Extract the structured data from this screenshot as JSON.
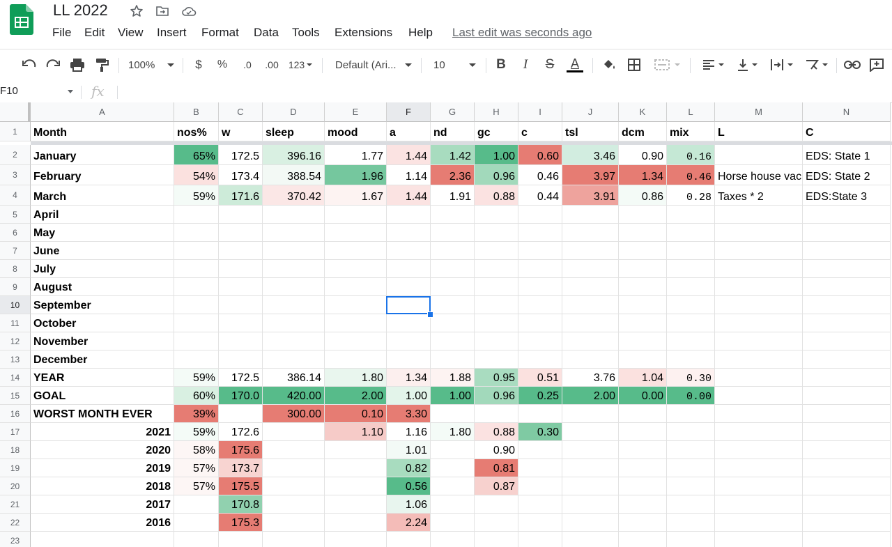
{
  "app": {
    "title": "LL 2022",
    "last_edit": "Last edit was seconds ago"
  },
  "menu": [
    "File",
    "Edit",
    "View",
    "Insert",
    "Format",
    "Data",
    "Tools",
    "Extensions",
    "Help"
  ],
  "toolbar": {
    "zoom": "100%",
    "currency": "$",
    "percent": "%",
    "dec_less": ".0",
    "dec_more": ".00",
    "more_formats": "123",
    "font": "Default (Ari...",
    "font_size": "10"
  },
  "formula_bar": {
    "cell_ref": "F10",
    "fx": "fx",
    "value": ""
  },
  "grid": {
    "columns": [
      "A",
      "B",
      "C",
      "D",
      "E",
      "F",
      "G",
      "H",
      "I",
      "J",
      "K",
      "L",
      "M",
      "N"
    ],
    "selected_column": "F",
    "selected_row": "10",
    "rows": [
      {
        "n": "1",
        "cells": [
          "Month",
          "nos%",
          "w",
          "sleep",
          "mood",
          "a",
          "nd",
          "gc",
          "c",
          "tsl",
          "dcm",
          "mix",
          "L",
          "C"
        ]
      },
      {
        "n": "2",
        "cells": [
          "January",
          "65%",
          "172.5",
          "396.16",
          "1.77",
          "1.44",
          "1.42",
          "1.00",
          "0.60",
          "3.46",
          "0.90",
          "0.16",
          "",
          "EDS: State 1"
        ]
      },
      {
        "n": "3",
        "cells": [
          "February",
          "54%",
          "173.4",
          "388.54",
          "1.96",
          "1.14",
          "2.36",
          "0.96",
          "0.46",
          "3.97",
          "1.34",
          "0.46",
          "Horse house vac",
          "EDS: State 2"
        ]
      },
      {
        "n": "4",
        "cells": [
          "March",
          "59%",
          "171.6",
          "370.42",
          "1.67",
          "1.44",
          "1.91",
          "0.88",
          "0.44",
          "3.91",
          "0.86",
          "0.28",
          "Taxes * 2",
          "EDS:State 3"
        ]
      },
      {
        "n": "5",
        "cells": [
          "April",
          "",
          "",
          "",
          "",
          "",
          "",
          "",
          "",
          "",
          "",
          "",
          "",
          ""
        ]
      },
      {
        "n": "6",
        "cells": [
          "May",
          "",
          "",
          "",
          "",
          "",
          "",
          "",
          "",
          "",
          "",
          "",
          "",
          ""
        ]
      },
      {
        "n": "7",
        "cells": [
          "June",
          "",
          "",
          "",
          "",
          "",
          "",
          "",
          "",
          "",
          "",
          "",
          "",
          ""
        ]
      },
      {
        "n": "8",
        "cells": [
          "July",
          "",
          "",
          "",
          "",
          "",
          "",
          "",
          "",
          "",
          "",
          "",
          "",
          ""
        ]
      },
      {
        "n": "9",
        "cells": [
          "August",
          "",
          "",
          "",
          "",
          "",
          "",
          "",
          "",
          "",
          "",
          "",
          "",
          ""
        ]
      },
      {
        "n": "10",
        "cells": [
          "September",
          "",
          "",
          "",
          "",
          "",
          "",
          "",
          "",
          "",
          "",
          "",
          "",
          ""
        ]
      },
      {
        "n": "11",
        "cells": [
          "October",
          "",
          "",
          "",
          "",
          "",
          "",
          "",
          "",
          "",
          "",
          "",
          "",
          ""
        ]
      },
      {
        "n": "12",
        "cells": [
          "November",
          "",
          "",
          "",
          "",
          "",
          "",
          "",
          "",
          "",
          "",
          "",
          "",
          ""
        ]
      },
      {
        "n": "13",
        "cells": [
          "December",
          "",
          "",
          "",
          "",
          "",
          "",
          "",
          "",
          "",
          "",
          "",
          "",
          ""
        ]
      },
      {
        "n": "14",
        "cells": [
          "YEAR",
          "59%",
          "172.5",
          "386.14",
          "1.80",
          "1.34",
          "1.88",
          "0.95",
          "0.51",
          "3.76",
          "1.04",
          "0.30",
          "",
          ""
        ]
      },
      {
        "n": "15",
        "cells": [
          "GOAL",
          "60%",
          "170.0",
          "420.00",
          "2.00",
          "1.00",
          "1.00",
          "0.96",
          "0.25",
          "2.00",
          "0.00",
          "0.00",
          "",
          ""
        ]
      },
      {
        "n": "16",
        "cells": [
          "WORST MONTH EVER",
          "39%",
          "",
          "300.00",
          "0.10",
          "3.30",
          "",
          "",
          "",
          "",
          "",
          "",
          "",
          ""
        ]
      },
      {
        "n": "17",
        "cells": [
          "2021",
          "59%",
          "172.6",
          "",
          "1.10",
          "1.16",
          "1.80",
          "0.88",
          "0.30",
          "",
          "",
          "",
          "",
          ""
        ]
      },
      {
        "n": "18",
        "cells": [
          "2020",
          "58%",
          "175.6",
          "",
          "",
          "1.01",
          "",
          "0.90",
          "",
          "",
          "",
          "",
          "",
          ""
        ]
      },
      {
        "n": "19",
        "cells": [
          "2019",
          "57%",
          "173.7",
          "",
          "",
          "0.82",
          "",
          "0.81",
          "",
          "",
          "",
          "",
          "",
          ""
        ]
      },
      {
        "n": "20",
        "cells": [
          "2018",
          "57%",
          "175.5",
          "",
          "",
          "0.56",
          "",
          "0.87",
          "",
          "",
          "",
          "",
          "",
          ""
        ]
      },
      {
        "n": "21",
        "cells": [
          "2017",
          "",
          "170.8",
          "",
          "",
          "1.06",
          "",
          "",
          "",
          "",
          "",
          "",
          "",
          ""
        ]
      },
      {
        "n": "22",
        "cells": [
          "2016",
          "",
          "175.3",
          "",
          "",
          "2.24",
          "",
          "",
          "",
          "",
          "",
          "",
          "",
          ""
        ]
      },
      {
        "n": "23",
        "cells": [
          "",
          "",
          "",
          "",
          "",
          "",
          "",
          "",
          "",
          "",
          "",
          "",
          "",
          ""
        ]
      }
    ],
    "fills": {
      "2": {
        "B": "#57bb8a",
        "C": "#ffffff",
        "D": "#d9f0e2",
        "E": "#ffffff",
        "F": "#fbe3e2",
        "G": "#a8dcbf",
        "H": "#57bb8a",
        "I": "#e67c73",
        "J": "#d2ede0",
        "K": "#ffffff",
        "L": "#c5e8d5"
      },
      "3": {
        "B": "#fbe1df",
        "C": "#ffffff",
        "D": "#f3f9f5",
        "E": "#75c79e",
        "F": "#ffffff",
        "G": "#e67c73",
        "H": "#a2d9bb",
        "I": "#ffffff",
        "J": "#e67c73",
        "K": "#e67c73",
        "L": "#e67c73"
      },
      "4": {
        "B": "#f4fbf7",
        "C": "#cdebd9",
        "D": "#fbe7e6",
        "E": "#fdf3f2",
        "F": "#fbe3e2",
        "G": "#ffffff",
        "H": "#fbe2e1",
        "I": "#ffffff",
        "J": "#eea39d",
        "K": "#f4fbf7",
        "L": "#ffffff"
      },
      "14": {
        "B": "#f4fbf7",
        "C": "#ffffff",
        "D": "#ffffff",
        "E": "#e9f6ee",
        "F": "#fcefee",
        "G": "#fdf3f2",
        "H": "#a9dcc0",
        "I": "#fbe1df",
        "J": "#ffffff",
        "K": "#fbe1df",
        "L": "#fdf1f0"
      },
      "15": {
        "B": "#d9f0e2",
        "C": "#57bb8a",
        "D": "#57bb8a",
        "E": "#57bb8a",
        "F": "#e3f4ea",
        "G": "#57bb8a",
        "H": "#a2d9bb",
        "I": "#57bb8a",
        "J": "#57bb8a",
        "K": "#57bb8a",
        "L": "#57bb8a"
      },
      "16": {
        "B": "#e67c73",
        "D": "#e67c73",
        "E": "#e67c73",
        "F": "#e67c73"
      },
      "17": {
        "B": "#f4fbf7",
        "C": "#ffffff",
        "E": "#f6cbc8",
        "F": "#ffffff",
        "G": "#f4fbf7",
        "H": "#fbe2e1",
        "I": "#7fcaa3"
      },
      "18": {
        "B": "#fdf6f5",
        "C": "#e67c73",
        "F": "#f3faf6"
      },
      "19": {
        "B": "#fdf6f5",
        "C": "#f8d4d1",
        "F": "#a8dcbf",
        "H": "#e67c73"
      },
      "20": {
        "B": "#fdf6f5",
        "C": "#e67c73",
        "F": "#57bb8a",
        "H": "#f7d1ce"
      },
      "21": {
        "C": "#91d1af",
        "F": "#e8f5ee"
      },
      "22": {
        "C": "#e67c73",
        "F": "#f4bcb8"
      }
    }
  },
  "icons": [
    "sheets-logo-icon",
    "star-icon",
    "move-to-folder-icon",
    "cloud-status-icon",
    "undo-icon",
    "redo-icon",
    "print-icon",
    "paint-format-icon",
    "bold-icon",
    "italic-icon",
    "strikethrough-icon",
    "text-color-icon",
    "fill-color-icon",
    "borders-icon",
    "merge-cells-icon",
    "align-horizontal-icon",
    "align-vertical-icon",
    "text-wrap-icon",
    "text-rotation-icon",
    "insert-link-icon",
    "insert-comment-icon"
  ],
  "colors": {
    "accent": "#1a73e8",
    "logo_green": "#0f9d58",
    "cf_green": "#57bb8a",
    "cf_red": "#e67c73"
  }
}
